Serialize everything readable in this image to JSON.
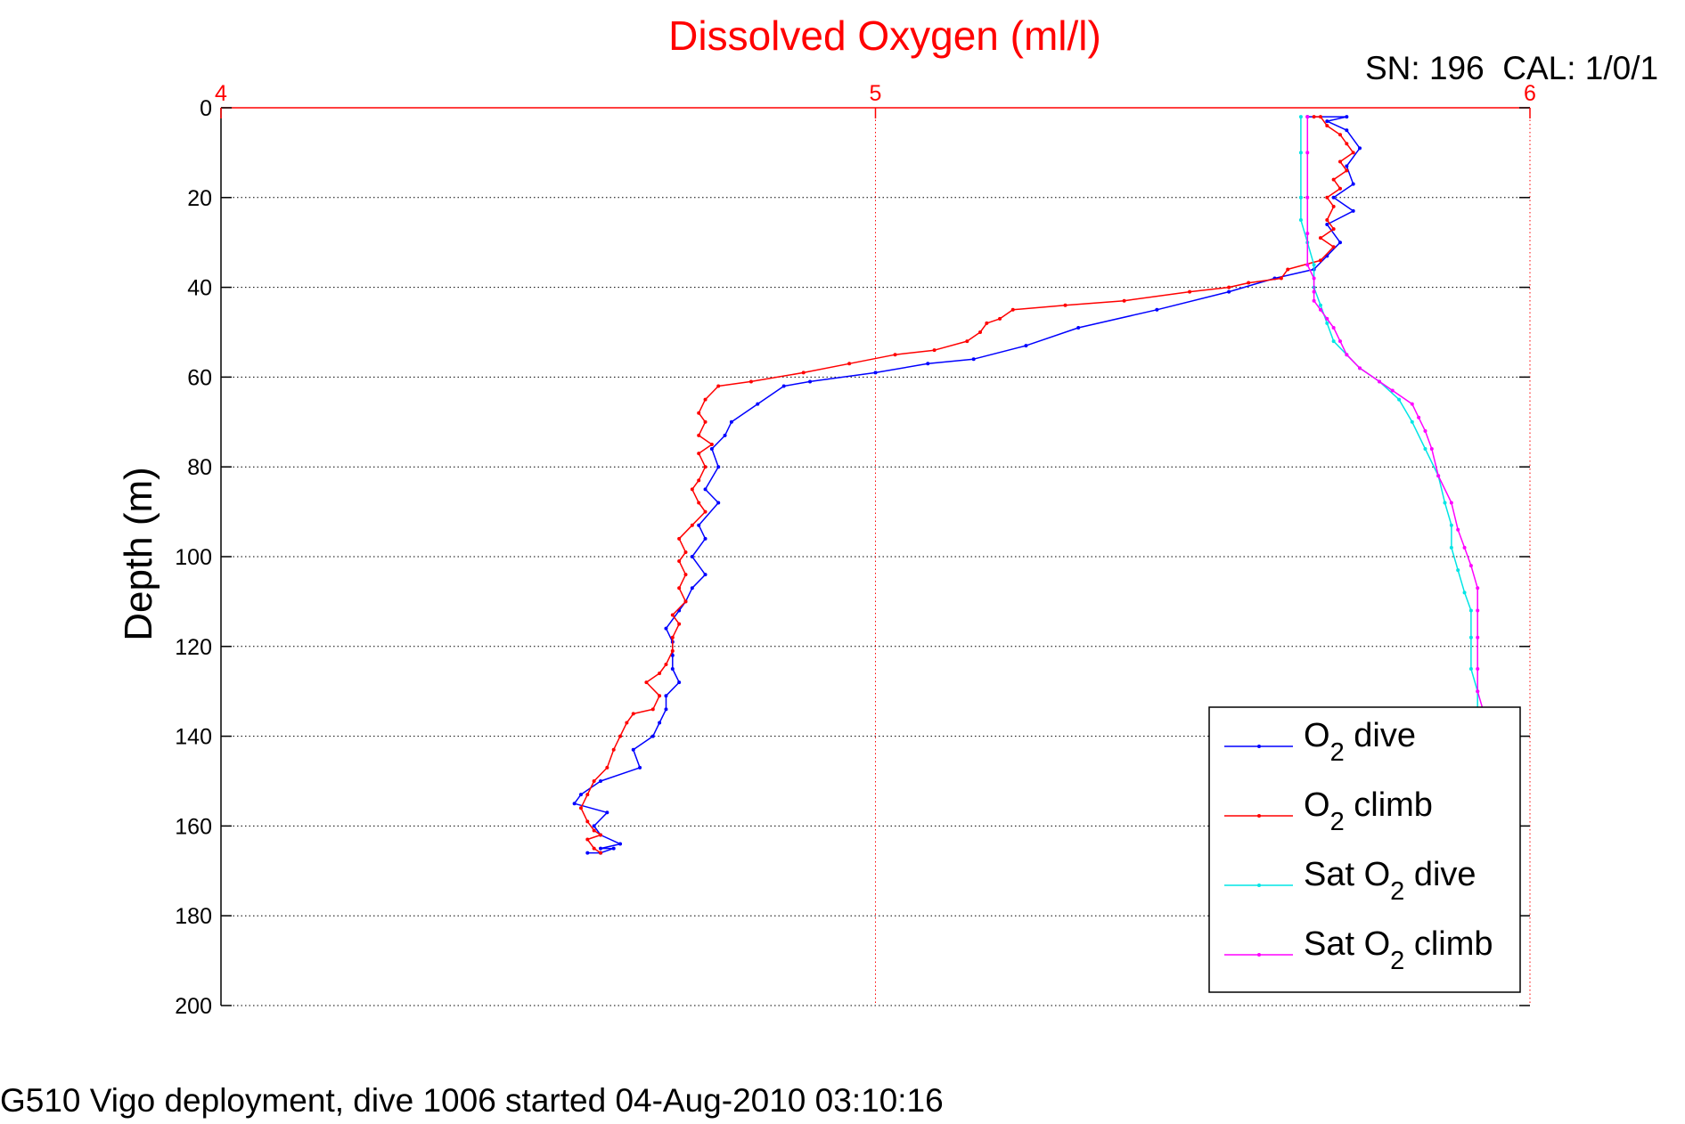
{
  "chart_data": {
    "type": "line",
    "title": "Dissolved Oxygen (ml/l)",
    "calibration_label": "SN: 196  CAL: 1/0/1",
    "xlabel": "",
    "ylabel": "Depth (m)",
    "xlim": [
      4,
      6
    ],
    "ylim": [
      0,
      200
    ],
    "y_reversed": true,
    "x_axis_position": "top",
    "xticks": [
      4,
      5,
      6
    ],
    "yticks": [
      0,
      20,
      40,
      60,
      80,
      100,
      120,
      140,
      160,
      180,
      200
    ],
    "grid": true,
    "legend_position": "bottom-right",
    "footer": "G510 Vigo deployment, dive 1006 started 04-Aug-2010 03:10:16",
    "colors": {
      "title": "#ff0000",
      "x_axis": "#ff0000",
      "y_axis": "#000000",
      "grid": "#000000"
    },
    "series": [
      {
        "name": "O2 dive",
        "legend": {
          "pre": "O",
          "sub": "2",
          "post": " dive"
        },
        "color": "#0000ff",
        "points": [
          [
            5.66,
            2
          ],
          [
            5.72,
            2
          ],
          [
            5.69,
            3
          ],
          [
            5.72,
            5
          ],
          [
            5.74,
            9
          ],
          [
            5.72,
            13
          ],
          [
            5.73,
            17
          ],
          [
            5.7,
            20
          ],
          [
            5.73,
            23
          ],
          [
            5.69,
            26
          ],
          [
            5.71,
            30
          ],
          [
            5.69,
            33
          ],
          [
            5.67,
            36
          ],
          [
            5.61,
            38
          ],
          [
            5.54,
            41
          ],
          [
            5.43,
            45
          ],
          [
            5.31,
            49
          ],
          [
            5.23,
            53
          ],
          [
            5.15,
            56
          ],
          [
            5.08,
            57
          ],
          [
            5.0,
            59
          ],
          [
            4.9,
            61
          ],
          [
            4.86,
            62
          ],
          [
            4.82,
            66
          ],
          [
            4.78,
            70
          ],
          [
            4.77,
            73
          ],
          [
            4.75,
            76
          ],
          [
            4.76,
            80
          ],
          [
            4.74,
            85
          ],
          [
            4.76,
            88
          ],
          [
            4.73,
            93
          ],
          [
            4.74,
            96
          ],
          [
            4.72,
            100
          ],
          [
            4.74,
            104
          ],
          [
            4.72,
            107
          ],
          [
            4.71,
            110
          ],
          [
            4.7,
            112
          ],
          [
            4.68,
            116
          ],
          [
            4.69,
            119
          ],
          [
            4.69,
            122
          ],
          [
            4.69,
            125
          ],
          [
            4.7,
            128
          ],
          [
            4.68,
            131
          ],
          [
            4.68,
            134
          ],
          [
            4.67,
            137
          ],
          [
            4.66,
            140
          ],
          [
            4.63,
            143
          ],
          [
            4.64,
            147
          ],
          [
            4.58,
            150
          ],
          [
            4.55,
            153
          ],
          [
            4.54,
            155
          ],
          [
            4.59,
            157
          ],
          [
            4.57,
            160
          ],
          [
            4.58,
            162
          ],
          [
            4.61,
            164
          ],
          [
            4.58,
            165
          ],
          [
            4.6,
            165
          ],
          [
            4.58,
            166
          ],
          [
            4.56,
            166
          ],
          [
            4.58,
            166
          ]
        ]
      },
      {
        "name": "O2 climb",
        "legend": {
          "pre": "O",
          "sub": "2",
          "post": " climb"
        },
        "color": "#ff0000",
        "points": [
          [
            4.58,
            166
          ],
          [
            4.57,
            165
          ],
          [
            4.56,
            163
          ],
          [
            4.58,
            162
          ],
          [
            4.57,
            161
          ],
          [
            4.56,
            159
          ],
          [
            4.55,
            156
          ],
          [
            4.56,
            153
          ],
          [
            4.57,
            150
          ],
          [
            4.59,
            147
          ],
          [
            4.6,
            143
          ],
          [
            4.61,
            140
          ],
          [
            4.62,
            137
          ],
          [
            4.63,
            135
          ],
          [
            4.66,
            134
          ],
          [
            4.67,
            131
          ],
          [
            4.65,
            128
          ],
          [
            4.67,
            126
          ],
          [
            4.68,
            124
          ],
          [
            4.69,
            121
          ],
          [
            4.69,
            118
          ],
          [
            4.7,
            115
          ],
          [
            4.69,
            113
          ],
          [
            4.71,
            110
          ],
          [
            4.7,
            107
          ],
          [
            4.71,
            104
          ],
          [
            4.7,
            101
          ],
          [
            4.71,
            99
          ],
          [
            4.7,
            96
          ],
          [
            4.72,
            93
          ],
          [
            4.74,
            90
          ],
          [
            4.73,
            88
          ],
          [
            4.72,
            85
          ],
          [
            4.73,
            83
          ],
          [
            4.74,
            80
          ],
          [
            4.73,
            77
          ],
          [
            4.75,
            75
          ],
          [
            4.73,
            73
          ],
          [
            4.74,
            70
          ],
          [
            4.73,
            68
          ],
          [
            4.74,
            65
          ],
          [
            4.76,
            62
          ],
          [
            4.81,
            61
          ],
          [
            4.89,
            59
          ],
          [
            4.96,
            57
          ],
          [
            5.03,
            55
          ],
          [
            5.09,
            54
          ],
          [
            5.14,
            52
          ],
          [
            5.16,
            50
          ],
          [
            5.17,
            48
          ],
          [
            5.19,
            47
          ],
          [
            5.21,
            45
          ],
          [
            5.29,
            44
          ],
          [
            5.38,
            43
          ],
          [
            5.48,
            41
          ],
          [
            5.54,
            40
          ],
          [
            5.57,
            39
          ],
          [
            5.62,
            38
          ],
          [
            5.63,
            36
          ],
          [
            5.68,
            34
          ],
          [
            5.7,
            31
          ],
          [
            5.68,
            29
          ],
          [
            5.7,
            27
          ],
          [
            5.69,
            25
          ],
          [
            5.7,
            22
          ],
          [
            5.69,
            20
          ],
          [
            5.71,
            18
          ],
          [
            5.7,
            16
          ],
          [
            5.72,
            14
          ],
          [
            5.71,
            12
          ],
          [
            5.73,
            10
          ],
          [
            5.72,
            8
          ],
          [
            5.71,
            6
          ],
          [
            5.69,
            4
          ],
          [
            5.68,
            2
          ],
          [
            5.67,
            2
          ]
        ]
      },
      {
        "name": "Sat O2 dive",
        "legend": {
          "pre": "Sat O",
          "sub": "2",
          "post": " dive"
        },
        "color": "#00e5e5",
        "points": [
          [
            5.65,
            2
          ],
          [
            5.65,
            10
          ],
          [
            5.65,
            20
          ],
          [
            5.65,
            25
          ],
          [
            5.66,
            30
          ],
          [
            5.67,
            35
          ],
          [
            5.67,
            40
          ],
          [
            5.68,
            44
          ],
          [
            5.69,
            48
          ],
          [
            5.7,
            52
          ],
          [
            5.72,
            55
          ],
          [
            5.74,
            58
          ],
          [
            5.77,
            61
          ],
          [
            5.8,
            65
          ],
          [
            5.82,
            70
          ],
          [
            5.84,
            76
          ],
          [
            5.86,
            82
          ],
          [
            5.87,
            88
          ],
          [
            5.88,
            93
          ],
          [
            5.88,
            98
          ],
          [
            5.89,
            103
          ],
          [
            5.9,
            108
          ],
          [
            5.91,
            112
          ],
          [
            5.91,
            118
          ],
          [
            5.91,
            125
          ],
          [
            5.92,
            130
          ],
          [
            5.92,
            135
          ]
        ]
      },
      {
        "name": "Sat O2 climb",
        "legend": {
          "pre": "Sat O",
          "sub": "2",
          "post": " climb"
        },
        "color": "#ff00ff",
        "points": [
          [
            5.93,
            135
          ],
          [
            5.92,
            130
          ],
          [
            5.92,
            125
          ],
          [
            5.92,
            118
          ],
          [
            5.92,
            112
          ],
          [
            5.92,
            107
          ],
          [
            5.91,
            102
          ],
          [
            5.9,
            98
          ],
          [
            5.89,
            94
          ],
          [
            5.88,
            88
          ],
          [
            5.86,
            82
          ],
          [
            5.85,
            76
          ],
          [
            5.84,
            72
          ],
          [
            5.83,
            69
          ],
          [
            5.82,
            66
          ],
          [
            5.79,
            63
          ],
          [
            5.77,
            61
          ],
          [
            5.74,
            58
          ],
          [
            5.72,
            55
          ],
          [
            5.71,
            52
          ],
          [
            5.7,
            49
          ],
          [
            5.69,
            47
          ],
          [
            5.68,
            45
          ],
          [
            5.67,
            43
          ],
          [
            5.67,
            41
          ],
          [
            5.67,
            38
          ],
          [
            5.66,
            35
          ],
          [
            5.66,
            28
          ],
          [
            5.66,
            20
          ],
          [
            5.66,
            10
          ],
          [
            5.66,
            2
          ]
        ]
      }
    ]
  }
}
